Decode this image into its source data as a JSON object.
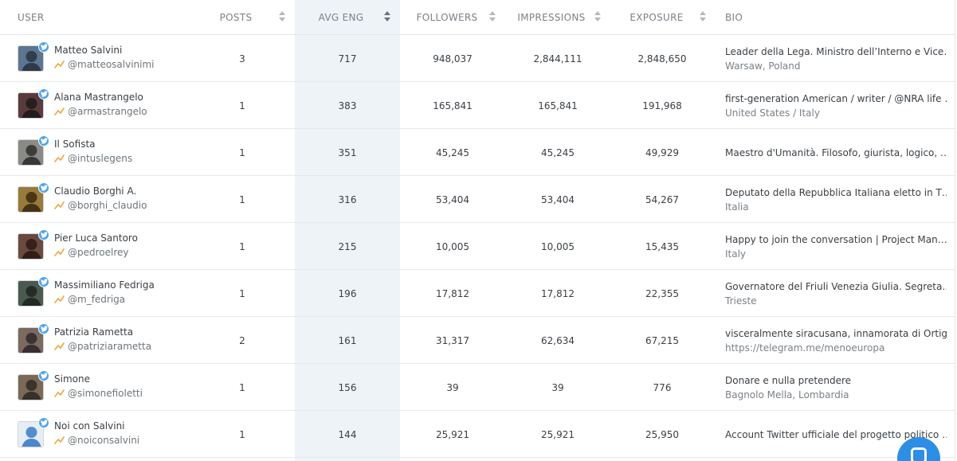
{
  "columns": {
    "user": "USER",
    "posts": "POSTS",
    "avg_eng": "AVG ENG",
    "followers": "FOLLOWERS",
    "impressions": "IMPRESSIONS",
    "exposure": "EXPOSURE",
    "bio": "BIO"
  },
  "sorted_by": "avg_eng",
  "rows": [
    {
      "name": "Matteo Salvini",
      "handle": "@matteosalvinimi",
      "posts": "3",
      "avg_eng": "717",
      "followers": "948,037",
      "impressions": "2,844,111",
      "exposure": "2,848,650",
      "bio": "Leader della Lega. Ministro dell’Interno e Vice…",
      "location": "Warsaw, Poland"
    },
    {
      "name": "Alana Mastrangelo",
      "handle": "@armastrangelo",
      "posts": "1",
      "avg_eng": "383",
      "followers": "165,841",
      "impressions": "165,841",
      "exposure": "191,968",
      "bio": "first-generation American / writer / @NRA life …",
      "location": "United States / Italy"
    },
    {
      "name": "Il Sofista",
      "handle": "@intuslegens",
      "posts": "1",
      "avg_eng": "351",
      "followers": "45,245",
      "impressions": "45,245",
      "exposure": "49,929",
      "bio": "Maestro d'Umanità. Filosofo, giurista, logico, …",
      "location": ""
    },
    {
      "name": "Claudio Borghi A.",
      "handle": "@borghi_claudio",
      "posts": "1",
      "avg_eng": "316",
      "followers": "53,404",
      "impressions": "53,404",
      "exposure": "54,267",
      "bio": "Deputato della Repubblica Italiana eletto in T…",
      "location": "Italia"
    },
    {
      "name": "Pier Luca Santoro",
      "handle": "@pedroelrey",
      "posts": "1",
      "avg_eng": "215",
      "followers": "10,005",
      "impressions": "10,005",
      "exposure": "15,435",
      "bio": "Happy to join the conversation | Project Man…",
      "location": "Italy"
    },
    {
      "name": "Massimiliano Fedriga",
      "handle": "@m_fedriga",
      "posts": "1",
      "avg_eng": "196",
      "followers": "17,812",
      "impressions": "17,812",
      "exposure": "22,355",
      "bio": "Governatore del Friuli Venezia Giulia. Segreta…",
      "location": "Trieste"
    },
    {
      "name": "Patrizia Rametta",
      "handle": "@patriziarametta",
      "posts": "2",
      "avg_eng": "161",
      "followers": "31,317",
      "impressions": "62,634",
      "exposure": "67,215",
      "bio": "visceralmente siracusana, innamorata di Ortig…",
      "location": "https://telegram.me/menoeuropa"
    },
    {
      "name": "Simone",
      "handle": "@simonefioletti",
      "posts": "1",
      "avg_eng": "156",
      "followers": "39",
      "impressions": "39",
      "exposure": "776",
      "bio": "Donare e nulla pretendere",
      "location": "Bagnolo Mella, Lombardia"
    },
    {
      "name": "Noi con Salvini",
      "handle": "@noiconsalvini",
      "posts": "1",
      "avg_eng": "144",
      "followers": "25,921",
      "impressions": "25,921",
      "exposure": "25,950",
      "bio": "Account Twitter ufficiale del progetto politico …",
      "location": ""
    }
  ],
  "icons": {
    "verified": "twitter-bird-icon",
    "trend": "trend-up-icon",
    "chat": "chat-bubble-icon"
  },
  "colors": {
    "accent": "#2d8ee6",
    "twitter": "#4aa3ee",
    "trend": "#f0a63a",
    "sorted_column_bg": "#eef3f8"
  }
}
